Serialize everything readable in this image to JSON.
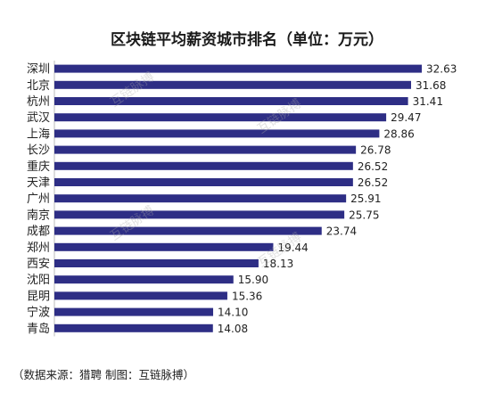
{
  "chart_data": {
    "type": "bar",
    "orientation": "horizontal",
    "title": "区块链平均薪资城市排名（单位：万元）",
    "categories": [
      "深圳",
      "北京",
      "杭州",
      "武汉",
      "上海",
      "长沙",
      "重庆",
      "天津",
      "广州",
      "南京",
      "成都",
      "郑州",
      "西安",
      "沈阳",
      "昆明",
      "宁波",
      "青岛"
    ],
    "values": [
      32.63,
      31.68,
      31.41,
      29.47,
      28.86,
      26.78,
      26.52,
      26.52,
      25.91,
      25.75,
      23.74,
      19.44,
      18.13,
      15.9,
      15.36,
      14.1,
      14.08
    ],
    "value_labels": [
      "32.63",
      "31.68",
      "31.41",
      "29.47",
      "28.86",
      "26.78",
      "26.52",
      "26.52",
      "25.91",
      "25.75",
      "23.74",
      "19.44",
      "18.13",
      "15.90",
      "15.36",
      "14.10",
      "14.08"
    ],
    "xlim": [
      0,
      32.63
    ],
    "grid": false,
    "bar_color": "#2e2e85"
  },
  "source": "（数据来源：猎聘   制图：互链脉搏）",
  "watermark": "互链脉搏"
}
